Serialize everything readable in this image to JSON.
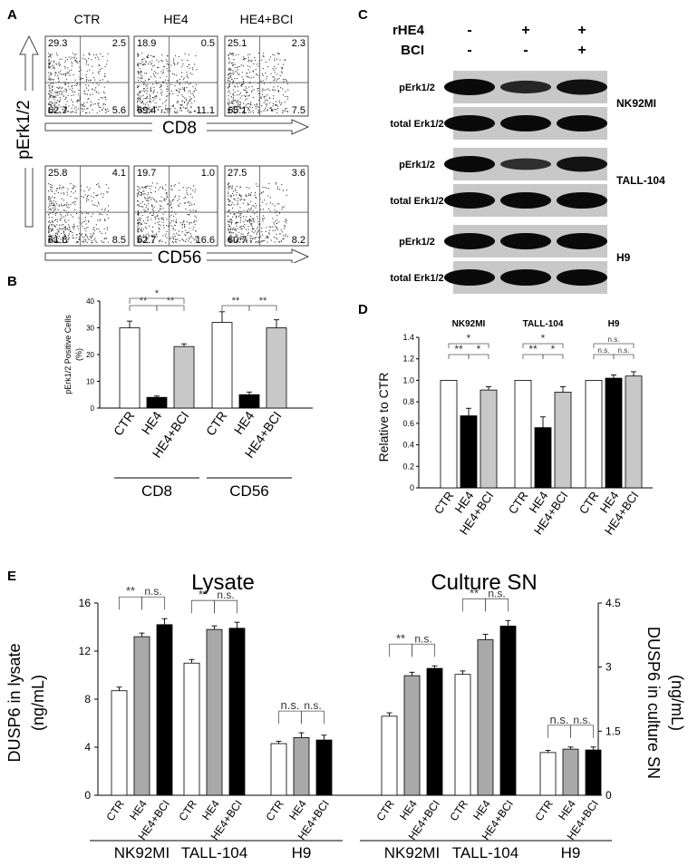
{
  "panels": {
    "a": "A",
    "b": "B",
    "c": "C",
    "d": "D",
    "e": "E"
  },
  "flow": {
    "conditions": [
      "CTR",
      "HE4",
      "HE4+BCI"
    ],
    "y_label": "pErk1/2",
    "rows": [
      {
        "marker": "CD8",
        "quadrants": [
          {
            "ul": "29.3",
            "ur": "2.5",
            "ll": "62.7",
            "lr": "5.6"
          },
          {
            "ul": "18.9",
            "ur": "0.5",
            "ll": "69.4",
            "lr": "11.1"
          },
          {
            "ul": "25.1",
            "ur": "2.3",
            "ll": "65.1",
            "lr": "7.5"
          }
        ]
      },
      {
        "marker": "CD56",
        "quadrants": [
          {
            "ul": "25.8",
            "ur": "4.1",
            "ll": "61.6",
            "lr": "8.5"
          },
          {
            "ul": "19.7",
            "ur": "1.0",
            "ll": "62.7",
            "lr": "16.6"
          },
          {
            "ul": "27.5",
            "ur": "3.6",
            "ll": "60.7",
            "lr": "8.2"
          }
        ]
      }
    ]
  },
  "western": {
    "header_rows": [
      {
        "label": "rHE4",
        "signs": [
          "-",
          "+",
          "+"
        ]
      },
      {
        "label": "BCI",
        "signs": [
          "-",
          "-",
          "+"
        ]
      }
    ],
    "blocks": [
      {
        "cell": "NK92MI",
        "rows": [
          "pErk1/2",
          "total Erk1/2"
        ]
      },
      {
        "cell": "TALL-104",
        "rows": [
          "pErk1/2",
          "total Erk1/2"
        ]
      },
      {
        "cell": "H9",
        "rows": [
          "pErk1/2",
          "total Erk1/2"
        ]
      }
    ],
    "p_intensity": [
      [
        1.0,
        0.68,
        0.92
      ],
      [
        1.0,
        0.56,
        0.9
      ],
      [
        1.0,
        1.0,
        1.0
      ]
    ]
  },
  "chart_data": [
    {
      "id": "B",
      "type": "bar",
      "ylabel": "pErk1/2 Positive Cells (%)",
      "ylabel_lines": [
        "pErk1/2 Positive Cells",
        "(%)"
      ],
      "ylim": [
        0,
        40
      ],
      "yticks": [
        "0",
        "10",
        "20",
        "30",
        "40"
      ],
      "groups": [
        "CD8",
        "CD56"
      ],
      "categories": [
        "CTR",
        "HE4",
        "HE4+BCI"
      ],
      "values": [
        [
          30,
          4,
          23
        ],
        [
          32,
          5,
          30
        ]
      ],
      "errors": [
        [
          2.5,
          0.5,
          1
        ],
        [
          4,
          1,
          3
        ]
      ],
      "significance": [
        [
          "*",
          "**",
          "**"
        ],
        [
          "**",
          "**"
        ]
      ],
      "colors": [
        "#ffffff",
        "#000000",
        "#c8c8c8"
      ]
    },
    {
      "id": "D",
      "type": "bar",
      "ylabel": "Relative to CTR",
      "ylim": [
        0,
        1.4
      ],
      "yticks": [
        "0",
        "0.2",
        "0.4",
        "0.6",
        "0.8",
        "1.0",
        "1.2",
        "1.4"
      ],
      "groups": [
        "NK92MI",
        "TALL-104",
        "H9"
      ],
      "categories": [
        "CTR",
        "HE4",
        "HE4+BCI"
      ],
      "values": [
        [
          1.0,
          0.67,
          0.91
        ],
        [
          1.0,
          0.56,
          0.89
        ],
        [
          1.0,
          1.02,
          1.04
        ]
      ],
      "errors": [
        [
          0,
          0.07,
          0.03
        ],
        [
          0,
          0.1,
          0.05
        ],
        [
          0,
          0.03,
          0.04
        ]
      ],
      "significance": [
        [
          "*",
          "**",
          "*"
        ],
        [
          "*",
          "**",
          "*"
        ],
        [
          "n.s.",
          "n.s.",
          "n.s."
        ]
      ],
      "colors": [
        "#ffffff",
        "#000000",
        "#c8c8c8"
      ]
    },
    {
      "id": "E",
      "type": "bar",
      "titles": [
        "Lysate",
        "Culture SN"
      ],
      "ylabel_left": "DUSP6 in lysate (ng/mL)",
      "ylabel_left_lines": [
        "DUSP6 in lysate",
        "(ng/mL)"
      ],
      "ylabel_right": "DUSP6 in culture SN (ng/mL)",
      "ylabel_right_lines": [
        "DUSP6 in culture SN",
        "(ng/mL)"
      ],
      "ylim_left": [
        0,
        16
      ],
      "yticks_left": [
        "0",
        "4",
        "8",
        "12",
        "16"
      ],
      "ylim_right": [
        0,
        4.5
      ],
      "yticks_right": [
        "0",
        "1.5",
        "3",
        "4.5"
      ],
      "groups": [
        "NK92MI",
        "TALL-104",
        "H9",
        "NK92MI",
        "TALL-104",
        "H9"
      ],
      "categories": [
        "CTR",
        "HE4",
        "HE4+BCI"
      ],
      "values_lysate": [
        [
          8.7,
          13.2,
          14.2
        ],
        [
          11.0,
          13.8,
          13.9
        ],
        [
          4.3,
          4.8,
          4.6
        ]
      ],
      "errors_lysate": [
        [
          0.3,
          0.3,
          0.5
        ],
        [
          0.3,
          0.3,
          0.5
        ],
        [
          0.2,
          0.4,
          0.4
        ]
      ],
      "values_sn": [
        [
          1.85,
          2.8,
          2.97
        ],
        [
          2.83,
          3.64,
          3.96
        ],
        [
          1.0,
          1.08,
          1.06
        ]
      ],
      "errors_sn": [
        [
          0.08,
          0.08,
          0.06
        ],
        [
          0.08,
          0.13,
          0.13
        ],
        [
          0.05,
          0.05,
          0.07
        ]
      ],
      "significance": [
        [
          "**",
          "n.s."
        ],
        [
          "**",
          "n.s."
        ],
        [
          "n.s.",
          "n.s."
        ],
        [
          "**",
          "n.s."
        ],
        [
          "**",
          "n.s."
        ],
        [
          "n.s.",
          "n.s."
        ]
      ],
      "colors": [
        "#ffffff",
        "#a9a9a9",
        "#000000"
      ]
    }
  ]
}
